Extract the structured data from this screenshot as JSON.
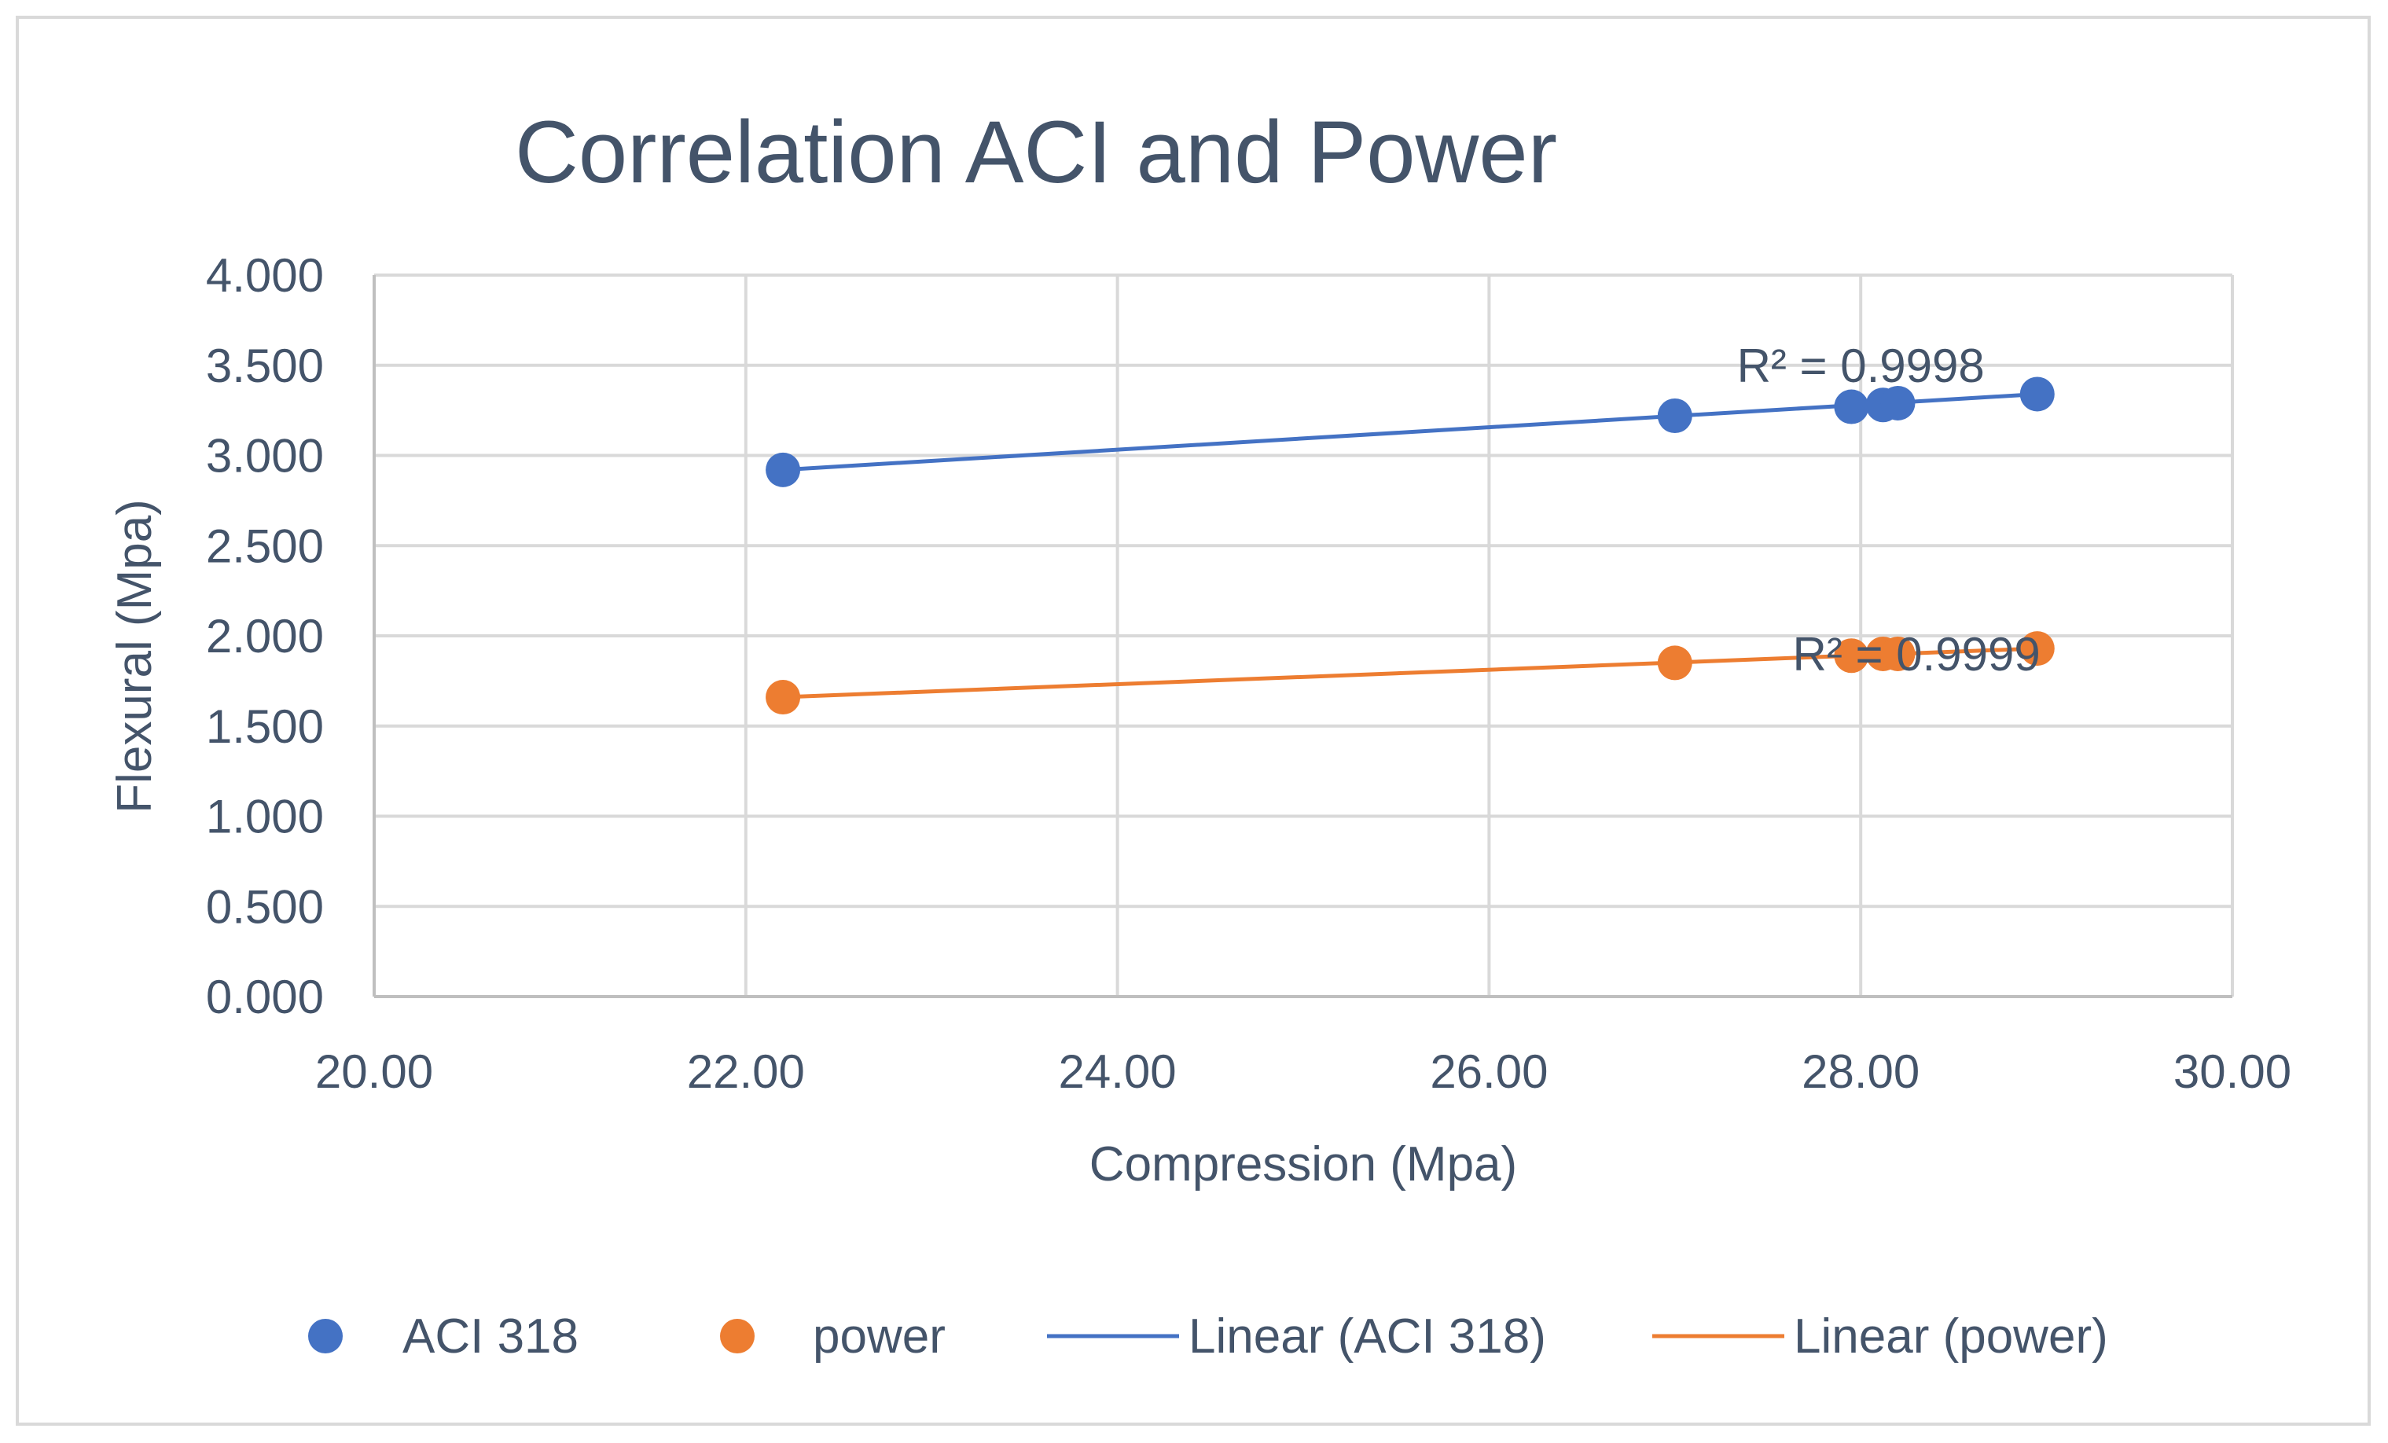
{
  "chart_data": {
    "type": "scatter",
    "title": "Correlation ACI and Power",
    "xlabel": "Compression (Mpa)",
    "ylabel": "Flexural (Mpa)",
    "xlim": [
      20,
      30
    ],
    "ylim": [
      0,
      4
    ],
    "x_ticks": [
      20,
      22,
      24,
      26,
      28,
      30
    ],
    "y_ticks": [
      0,
      0.5,
      1,
      1.5,
      2,
      2.5,
      3,
      3.5,
      4
    ],
    "x_tick_labels": [
      "20.00",
      "22.00",
      "24.00",
      "26.00",
      "28.00",
      "30.00"
    ],
    "y_tick_labels": [
      "0.000",
      "0.500",
      "1.000",
      "1.500",
      "2.000",
      "2.500",
      "3.000",
      "3.500",
      "4.000"
    ],
    "grid": true,
    "legend_position": "bottom",
    "series": [
      {
        "name": "ACI 318",
        "color": "#4472c4",
        "x": [
          22.2,
          27.0,
          27.95,
          28.12,
          28.2,
          28.95
        ],
        "y": [
          2.92,
          3.22,
          3.27,
          3.28,
          3.29,
          3.34
        ],
        "trendline": {
          "name": "Linear (ACI 318)",
          "from": [
            22.2,
            2.92
          ],
          "to": [
            28.95,
            3.34
          ],
          "r2_label": "R² = 0.9998",
          "r2_anchor": [
            28.0,
            3.5
          ]
        }
      },
      {
        "name": "power",
        "color": "#ed7d31",
        "x": [
          22.2,
          27.0,
          27.95,
          28.12,
          28.2,
          28.95
        ],
        "y": [
          1.66,
          1.85,
          1.89,
          1.9,
          1.9,
          1.93
        ],
        "trendline": {
          "name": "Linear (power)",
          "from": [
            22.2,
            1.66
          ],
          "to": [
            28.95,
            1.93
          ],
          "r2_label": "R² = 0.9999",
          "r2_anchor": [
            28.3,
            1.9
          ]
        }
      }
    ],
    "legend": [
      "ACI 318",
      "power",
      "Linear (ACI 318)",
      "Linear (power)"
    ]
  }
}
